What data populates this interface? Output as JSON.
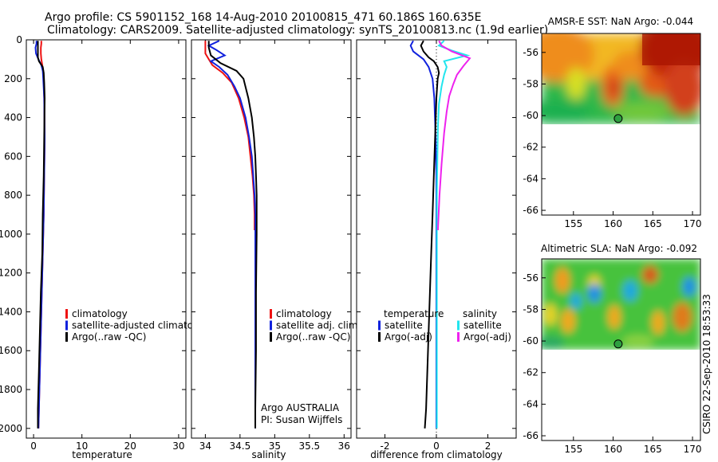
{
  "header": {
    "line1": "Argo profile: CS 5901152_168 14-Aug-2010 20100815_471 60.186S 160.635E",
    "line2": "Climatology: CARS2009. Satellite-adjusted climatology: synTS_20100813.nc (1.9d earlier)"
  },
  "side_stamp": "CSIRO 22-Sep-2010 18:53:33",
  "colors": {
    "climatology": "#ee1111",
    "satellite": "#1122dd",
    "argo": "#000000",
    "sal_satellite": "#22e5ee",
    "sal_argo": "#ee22ee",
    "marker": "#2ea040"
  },
  "chart_data": [
    {
      "type": "line",
      "title": "",
      "xlabel": "temperature",
      "ylabel": "",
      "xlim": [
        -1.5,
        31.5
      ],
      "ylim": [
        2050,
        0
      ],
      "xticks": [
        0,
        10,
        20,
        30
      ],
      "yticks": [
        0,
        200,
        400,
        600,
        800,
        1000,
        1200,
        1400,
        1600,
        1800,
        2000
      ],
      "legend": {
        "placement": "lower-right",
        "entries": [
          "climatology",
          "satellite-adjusted climatology",
          "Argo(..raw -QC)"
        ]
      },
      "series": [
        {
          "name": "climatology",
          "color_key": "climatology",
          "points": [
            [
              1.6,
              5
            ],
            [
              1.6,
              20
            ],
            [
              1.5,
              40
            ],
            [
              1.5,
              70
            ],
            [
              1.6,
              100
            ],
            [
              1.8,
              130
            ],
            [
              2.0,
              160
            ],
            [
              2.1,
              200
            ],
            [
              2.2,
              300
            ],
            [
              2.3,
              500
            ],
            [
              2.2,
              700
            ],
            [
              2.1,
              900
            ],
            [
              1.9,
              1100
            ],
            [
              1.7,
              1300
            ],
            [
              1.5,
              1500
            ],
            [
              1.3,
              1700
            ],
            [
              1.1,
              1900
            ],
            [
              1.0,
              2000
            ]
          ]
        },
        {
          "name": "satellite-adjusted climatology",
          "color_key": "satellite",
          "points": [
            [
              0.6,
              5
            ],
            [
              0.6,
              20
            ],
            [
              0.4,
              40
            ],
            [
              0.5,
              70
            ],
            [
              1.0,
              100
            ],
            [
              1.6,
              130
            ],
            [
              1.9,
              160
            ],
            [
              2.0,
              200
            ],
            [
              2.2,
              300
            ],
            [
              2.3,
              500
            ],
            [
              2.2,
              700
            ],
            [
              2.1,
              900
            ],
            [
              1.9,
              1100
            ],
            [
              1.7,
              1300
            ],
            [
              1.5,
              1500
            ],
            [
              1.3,
              1700
            ],
            [
              1.1,
              1900
            ],
            [
              1.0,
              2000
            ]
          ]
        },
        {
          "name": "Argo(..raw -QC)",
          "color_key": "argo",
          "points": [
            [
              0.9,
              5
            ],
            [
              0.9,
              30
            ],
            [
              0.9,
              60
            ],
            [
              0.9,
              90
            ],
            [
              1.1,
              110
            ],
            [
              1.9,
              140
            ],
            [
              2.1,
              170
            ],
            [
              2.2,
              220
            ],
            [
              2.3,
              300
            ],
            [
              2.2,
              500
            ],
            [
              2.1,
              700
            ],
            [
              1.9,
              900
            ],
            [
              1.8,
              1100
            ],
            [
              1.5,
              1300
            ],
            [
              1.3,
              1500
            ],
            [
              1.1,
              1700
            ],
            [
              0.9,
              1900
            ],
            [
              0.9,
              2000
            ]
          ]
        }
      ]
    },
    {
      "type": "line",
      "title": "",
      "xlabel": "salinity",
      "ylabel": "",
      "xlim": [
        33.8,
        36.1
      ],
      "ylim": [
        2050,
        0
      ],
      "xticks": [
        34,
        34.5,
        35,
        35.5,
        36
      ],
      "legend": {
        "placement": "lower-right",
        "entries": [
          "climatology",
          "satellite adj. clim.",
          "Argo(..raw -QC)"
        ]
      },
      "annotation": {
        "line1": "Argo AUSTRALIA",
        "line2": "PI: Susan Wijffels"
      },
      "series": [
        {
          "name": "climatology",
          "color_key": "climatology",
          "points": [
            [
              34.0,
              5
            ],
            [
              34.0,
              30
            ],
            [
              34.0,
              70
            ],
            [
              34.05,
              100
            ],
            [
              34.1,
              130
            ],
            [
              34.25,
              170
            ],
            [
              34.38,
              220
            ],
            [
              34.48,
              300
            ],
            [
              34.56,
              400
            ],
            [
              34.62,
              500
            ],
            [
              34.65,
              600
            ],
            [
              34.68,
              700
            ],
            [
              34.7,
              800
            ],
            [
              34.71,
              900
            ],
            [
              34.71,
              980
            ]
          ]
        },
        {
          "name": "satellite adj. clim.",
          "color_key": "satellite",
          "points": [
            [
              34.2,
              5
            ],
            [
              34.05,
              30
            ],
            [
              34.15,
              50
            ],
            [
              34.28,
              80
            ],
            [
              34.08,
              110
            ],
            [
              34.2,
              140
            ],
            [
              34.32,
              180
            ],
            [
              34.42,
              240
            ],
            [
              34.5,
              300
            ],
            [
              34.58,
              400
            ],
            [
              34.63,
              500
            ],
            [
              34.67,
              600
            ],
            [
              34.69,
              700
            ],
            [
              34.71,
              800
            ],
            [
              34.72,
              900
            ],
            [
              34.72,
              1200
            ],
            [
              34.72,
              1600
            ],
            [
              34.72,
              2000
            ]
          ]
        },
        {
          "name": "Argo(..raw -QC)",
          "color_key": "argo",
          "points": [
            [
              34.05,
              5
            ],
            [
              34.05,
              40
            ],
            [
              34.08,
              80
            ],
            [
              34.22,
              120
            ],
            [
              34.45,
              160
            ],
            [
              34.55,
              200
            ],
            [
              34.62,
              300
            ],
            [
              34.67,
              400
            ],
            [
              34.7,
              500
            ],
            [
              34.72,
              600
            ],
            [
              34.73,
              700
            ],
            [
              34.74,
              800
            ],
            [
              34.74,
              1000
            ],
            [
              34.73,
              1300
            ],
            [
              34.73,
              1600
            ],
            [
              34.72,
              1900
            ],
            [
              34.72,
              2000
            ]
          ]
        }
      ]
    },
    {
      "type": "line",
      "title": "",
      "xlabel": "difference from climatology",
      "ylabel": "",
      "xlim": [
        -3.1,
        3.1
      ],
      "ylim": [
        2050,
        0
      ],
      "xticks": [
        -2,
        0,
        2
      ],
      "legend": {
        "placement": "lower-right",
        "entries": [
          "temperature",
          "satellite",
          "Argo(-adj)",
          "salinity",
          "satellite",
          "Argo(-adj)"
        ]
      },
      "series": [
        {
          "name": "temperature satellite",
          "color_key": "satellite",
          "points": [
            [
              -0.9,
              5
            ],
            [
              -1.0,
              30
            ],
            [
              -0.9,
              60
            ],
            [
              -0.5,
              100
            ],
            [
              -0.3,
              140
            ],
            [
              -0.15,
              200
            ],
            [
              -0.08,
              300
            ],
            [
              -0.03,
              500
            ],
            [
              0.0,
              700
            ],
            [
              0.0,
              1000
            ],
            [
              0.0,
              1500
            ],
            [
              0.0,
              2000
            ]
          ]
        },
        {
          "name": "temperature Argo(-adj)",
          "color_key": "argo",
          "points": [
            [
              -0.5,
              5
            ],
            [
              -0.6,
              30
            ],
            [
              -0.5,
              60
            ],
            [
              -0.3,
              90
            ],
            [
              -0.1,
              110
            ],
            [
              0.05,
              140
            ],
            [
              0.1,
              170
            ],
            [
              0.05,
              200
            ],
            [
              0.0,
              300
            ],
            [
              -0.05,
              500
            ],
            [
              -0.1,
              700
            ],
            [
              -0.15,
              900
            ],
            [
              -0.2,
              1100
            ],
            [
              -0.25,
              1300
            ],
            [
              -0.3,
              1500
            ],
            [
              -0.35,
              1700
            ],
            [
              -0.4,
              1900
            ],
            [
              -0.45,
              2000
            ]
          ]
        },
        {
          "name": "salinity satellite",
          "color_key": "sal_satellite",
          "points": [
            [
              0.3,
              5
            ],
            [
              0.1,
              30
            ],
            [
              0.6,
              55
            ],
            [
              1.2,
              80
            ],
            [
              0.3,
              110
            ],
            [
              0.4,
              140
            ],
            [
              0.3,
              180
            ],
            [
              0.2,
              240
            ],
            [
              0.1,
              330
            ],
            [
              0.06,
              450
            ],
            [
              0.04,
              600
            ],
            [
              0.02,
              800
            ],
            [
              0.02,
              1000
            ],
            [
              0.02,
              1500
            ],
            [
              0.02,
              2000
            ]
          ]
        },
        {
          "name": "salinity Argo(-adj)",
          "color_key": "sal_argo",
          "points": [
            [
              0.1,
              5
            ],
            [
              0.2,
              30
            ],
            [
              0.6,
              60
            ],
            [
              1.3,
              95
            ],
            [
              1.05,
              135
            ],
            [
              0.8,
              180
            ],
            [
              0.65,
              230
            ],
            [
              0.5,
              290
            ],
            [
              0.4,
              370
            ],
            [
              0.3,
              480
            ],
            [
              0.2,
              640
            ],
            [
              0.12,
              800
            ],
            [
              0.06,
              980
            ]
          ]
        }
      ]
    },
    {
      "type": "heatmap",
      "title": "AMSR-E SST: NaN Argo: -0.044",
      "xlim": [
        151,
        171
      ],
      "ylim": [
        -66.3,
        -54.8
      ],
      "xticks": [
        155,
        160,
        165,
        170
      ],
      "yticks": [
        -56,
        -58,
        -60,
        -62,
        -64,
        -66
      ],
      "field_south_limit": -60,
      "argo_position": [
        160.635,
        -60.186
      ]
    },
    {
      "type": "heatmap",
      "title": "Altimetric SLA: NaN Argo: -0.092",
      "xlim": [
        151,
        171
      ],
      "ylim": [
        -66.3,
        -54.8
      ],
      "xticks": [
        155,
        160,
        165,
        170
      ],
      "yticks": [
        -56,
        -58,
        -60,
        -62,
        -64,
        -66
      ],
      "field_south_limit": -60,
      "argo_position": [
        160.635,
        -60.186
      ]
    }
  ]
}
